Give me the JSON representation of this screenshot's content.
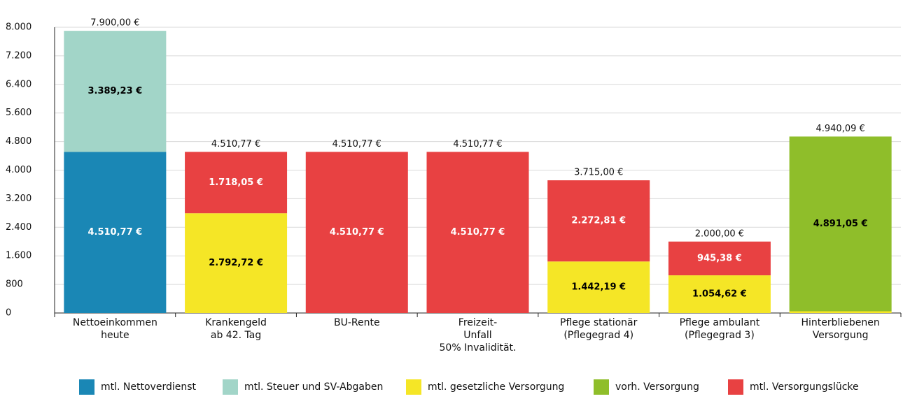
{
  "chart_data": {
    "type": "stacked_bar",
    "categories": [
      "Nettoeinkommen\nheute",
      "Krankengeld\nab 42. Tag",
      "BU-Rente",
      "Freizeit-\nUnfall\n50% Invalidität.",
      "Pflege stationär\n(Pflegegrad 4)",
      "Pflege ambulant\n(Pflegegrad 3)",
      "Hinterbliebenen\nVersorgung"
    ],
    "series": [
      {
        "name": "mtl. Nettoverdienst",
        "color": "#1a87b5",
        "label_color": "#ffffff",
        "values": [
          4510.77,
          null,
          null,
          null,
          null,
          null,
          null
        ],
        "value_labels": [
          "4.510,77 €",
          null,
          null,
          null,
          null,
          null,
          null
        ]
      },
      {
        "name": "mtl. Steuer und SV-Abgaben",
        "color": "#a2d5c8",
        "label_color": "#000000",
        "values": [
          3389.23,
          null,
          null,
          null,
          null,
          null,
          null
        ],
        "value_labels": [
          "3.389,23 €",
          null,
          null,
          null,
          null,
          null,
          null
        ]
      },
      {
        "name": "mtl. gesetzliche Versorgung",
        "color": "#f5e626",
        "label_color": "#000000",
        "values": [
          null,
          2792.72,
          null,
          null,
          1442.19,
          1054.62,
          49.04
        ],
        "value_labels": [
          null,
          "2.792,72 €",
          null,
          null,
          "1.442,19 €",
          "1.054,62 €",
          null
        ]
      },
      {
        "name": "vorh. Versorgung",
        "color": "#8fbe2a",
        "label_color": "#000000",
        "values": [
          null,
          null,
          null,
          null,
          null,
          null,
          4891.05
        ],
        "value_labels": [
          null,
          null,
          null,
          null,
          null,
          null,
          "4.891,05 €"
        ]
      },
      {
        "name": "mtl. Versorgungslücke",
        "color": "#e84142",
        "label_color": "#ffffff",
        "values": [
          null,
          1718.05,
          4510.77,
          4510.77,
          2272.81,
          945.38,
          null
        ],
        "value_labels": [
          null,
          "1.718,05 €",
          "4.510,77 €",
          "4.510,77 €",
          "2.272,81 €",
          "945,38 €",
          null
        ]
      }
    ],
    "totals": [
      7900,
      4510.77,
      4510.77,
      4510.77,
      3715,
      2000,
      4940.09
    ],
    "total_labels": [
      "7.900,00 €",
      "4.510,77 €",
      "4.510,77 €",
      "4.510,77 €",
      "3.715,00 €",
      "2.000,00 €",
      "4.940,09 €"
    ],
    "ylim": [
      0,
      8000
    ],
    "yticks": [
      0,
      800,
      {
        "value": 1600,
        "label": "1.600"
      },
      {
        "value": 2400,
        "label": "2.400"
      },
      {
        "value": 3200,
        "label": "3.200"
      },
      {
        "value": 4000,
        "label": "4.000"
      },
      {
        "value": 4800,
        "label": "4.800"
      },
      {
        "value": 5600,
        "label": "5.600"
      },
      {
        "value": 6400,
        "label": "6.400"
      },
      {
        "value": 7200,
        "label": "7.200"
      },
      {
        "value": 8000,
        "label": "8.000"
      }
    ],
    "grid": true,
    "legend": "bottom"
  }
}
